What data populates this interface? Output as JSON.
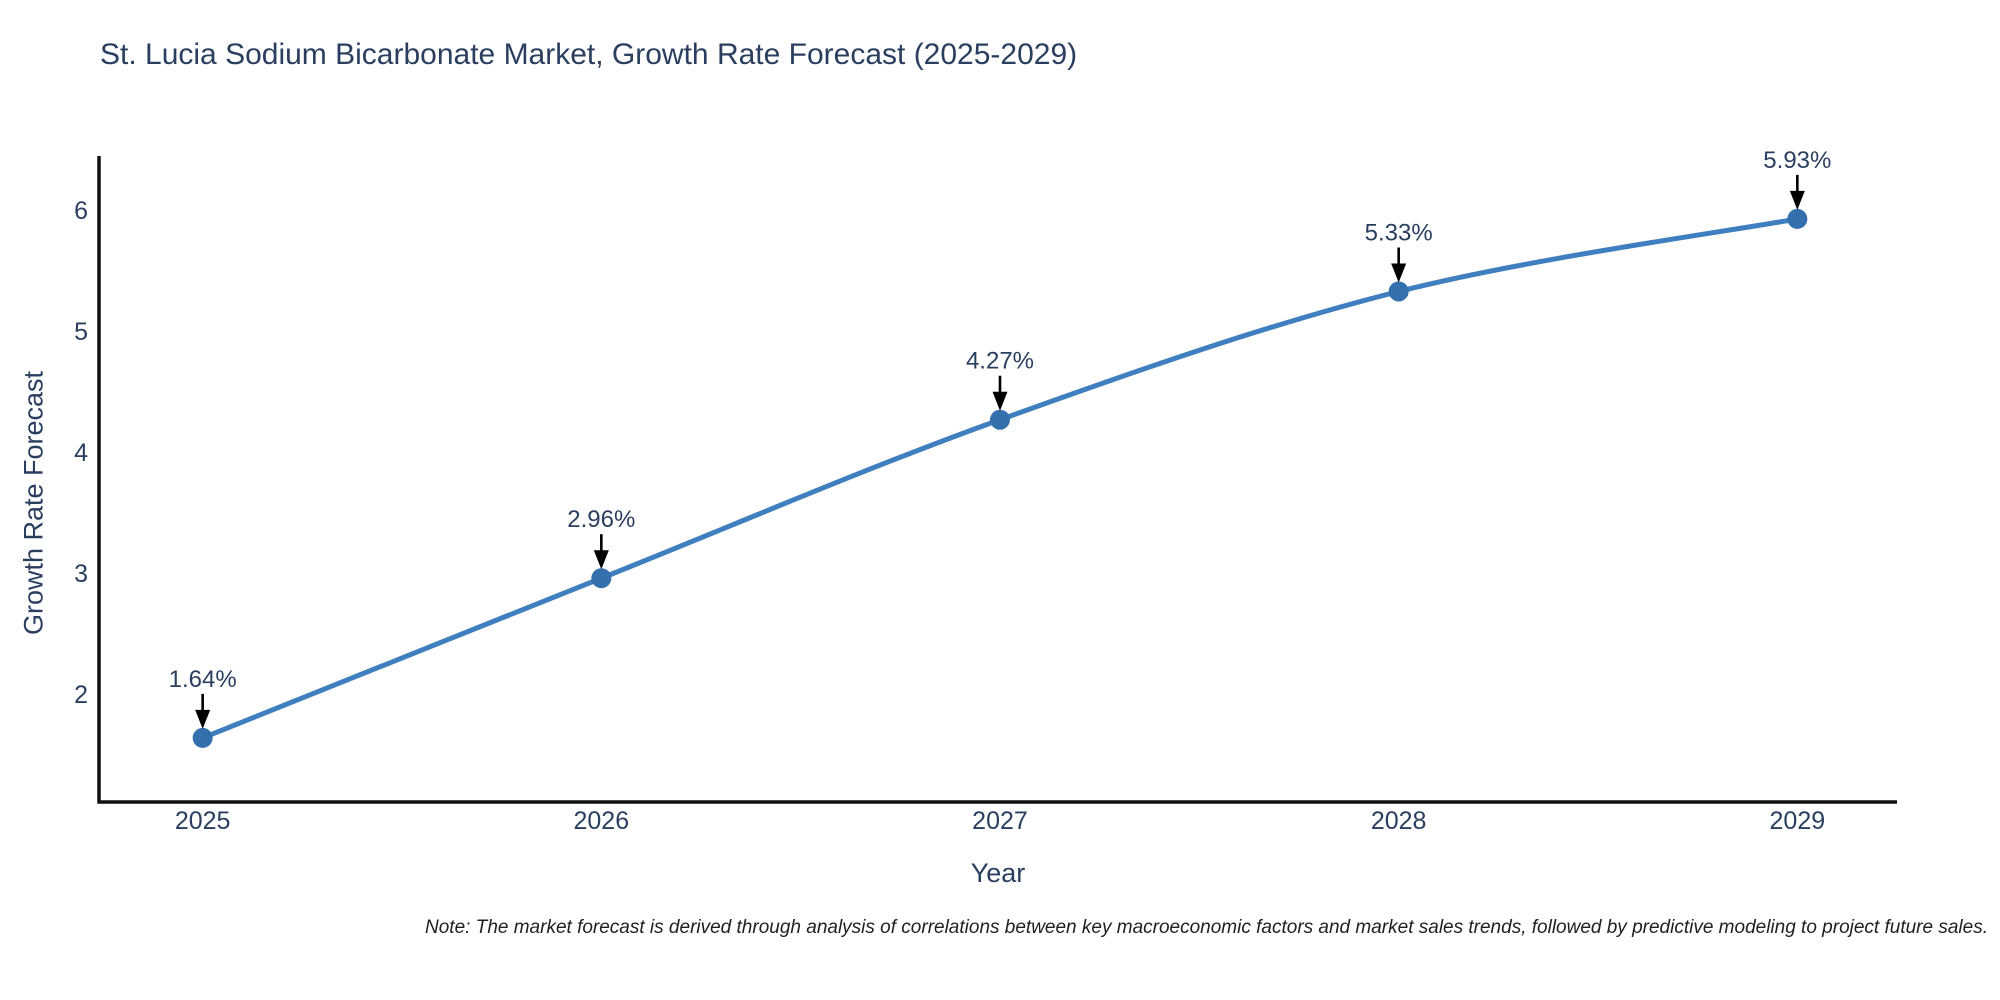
{
  "title": "St. Lucia Sodium Bicarbonate Market, Growth Rate Forecast (2025-2029)",
  "note": "Note: The market forecast is derived through analysis of correlations between key macroeconomic factors and market sales trends, followed by predictive modeling to project future sales.",
  "chart_data": {
    "type": "line",
    "x": [
      2025,
      2026,
      2027,
      2028,
      2029
    ],
    "y": [
      1.64,
      2.96,
      4.27,
      5.33,
      5.93
    ],
    "point_labels": [
      "1.64%",
      "2.96%",
      "4.27%",
      "5.33%",
      "5.93%"
    ],
    "title": "St. Lucia Sodium Bicarbonate Market, Growth Rate Forecast (2025-2029)",
    "xlabel": "Year",
    "ylabel": "Growth Rate Forecast",
    "yticks": [
      2,
      3,
      4,
      5,
      6
    ],
    "xticks": [
      2025,
      2026,
      2027,
      2028,
      2029
    ],
    "xlim": [
      2024.74,
      2029.25
    ],
    "ylim": [
      1.11,
      6.45
    ],
    "line_shape": "spline",
    "grid": false,
    "legend": "none",
    "colors": {
      "line": "#3f7fbf",
      "marker": "#3470ad",
      "axis": "#111111",
      "arrow": "#000000",
      "text": "#2a3f5f"
    }
  }
}
